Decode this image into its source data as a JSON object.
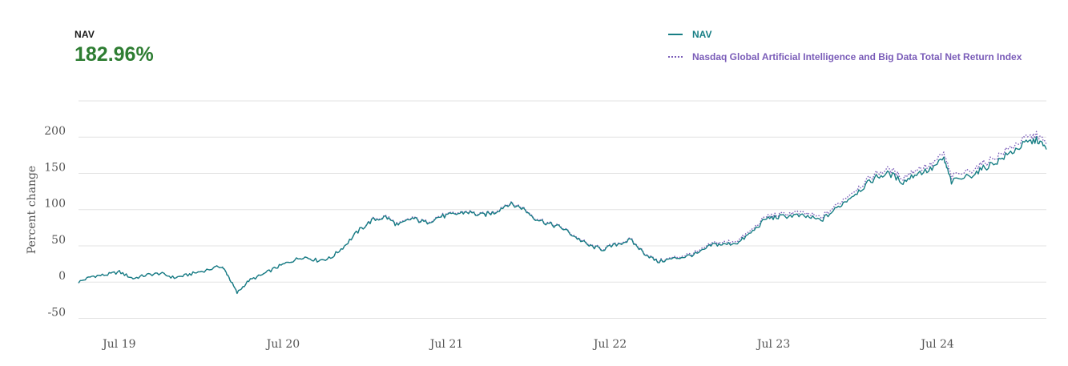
{
  "readout": {
    "label": "NAV",
    "value": "182.96%"
  },
  "colors": {
    "nav": "#177e84",
    "index": "#7a5cb8",
    "value_green": "#2e7d32",
    "grid": "#e3e3e3"
  },
  "chart_data": {
    "type": "line",
    "ylabel": "Percent change",
    "ylim": [
      -55,
      250
    ],
    "grid": true,
    "legend_position": "top-right",
    "y_ticks": [
      {
        "value": 200,
        "label": "200"
      },
      {
        "value": 150,
        "label": "150"
      },
      {
        "value": 100,
        "label": "100"
      },
      {
        "value": 50,
        "label": "50"
      },
      {
        "value": 0,
        "label": "0"
      },
      {
        "value": -50,
        "label": "-50"
      }
    ],
    "x_range": [
      "2019-04-01",
      "2025-03-01"
    ],
    "x_ticks": [
      {
        "date": "2019-07-01",
        "label": "Jul 19"
      },
      {
        "date": "2020-07-01",
        "label": "Jul 20"
      },
      {
        "date": "2021-07-01",
        "label": "Jul 21"
      },
      {
        "date": "2022-07-01",
        "label": "Jul 22"
      },
      {
        "date": "2023-07-01",
        "label": "Jul 23"
      },
      {
        "date": "2024-07-01",
        "label": "Jul 24"
      }
    ],
    "series": [
      {
        "name": "NAV",
        "style": "solid",
        "points": [
          [
            "2019-04-01",
            0
          ],
          [
            "2019-05-01",
            8
          ],
          [
            "2019-06-01",
            10
          ],
          [
            "2019-07-01",
            14
          ],
          [
            "2019-08-01",
            5
          ],
          [
            "2019-09-01",
            10
          ],
          [
            "2019-10-01",
            12
          ],
          [
            "2019-11-01",
            6
          ],
          [
            "2019-12-01",
            10
          ],
          [
            "2020-01-01",
            15
          ],
          [
            "2020-02-15",
            22
          ],
          [
            "2020-02-28",
            10
          ],
          [
            "2020-03-20",
            -15
          ],
          [
            "2020-04-15",
            2
          ],
          [
            "2020-05-15",
            10
          ],
          [
            "2020-06-15",
            20
          ],
          [
            "2020-07-15",
            28
          ],
          [
            "2020-08-15",
            35
          ],
          [
            "2020-09-15",
            30
          ],
          [
            "2020-10-15",
            33
          ],
          [
            "2020-11-15",
            50
          ],
          [
            "2020-12-15",
            70
          ],
          [
            "2021-01-15",
            85
          ],
          [
            "2021-02-15",
            90
          ],
          [
            "2021-03-15",
            78
          ],
          [
            "2021-04-15",
            88
          ],
          [
            "2021-05-15",
            82
          ],
          [
            "2021-06-15",
            90
          ],
          [
            "2021-07-15",
            93
          ],
          [
            "2021-08-15",
            97
          ],
          [
            "2021-09-15",
            92
          ],
          [
            "2021-10-15",
            96
          ],
          [
            "2021-11-15",
            108
          ],
          [
            "2021-12-15",
            103
          ],
          [
            "2022-01-15",
            88
          ],
          [
            "2022-02-15",
            80
          ],
          [
            "2022-03-15",
            75
          ],
          [
            "2022-04-15",
            62
          ],
          [
            "2022-05-15",
            50
          ],
          [
            "2022-06-15",
            45
          ],
          [
            "2022-07-15",
            52
          ],
          [
            "2022-08-15",
            58
          ],
          [
            "2022-09-15",
            40
          ],
          [
            "2022-10-15",
            28
          ],
          [
            "2022-11-15",
            32
          ],
          [
            "2022-12-15",
            35
          ],
          [
            "2023-01-15",
            40
          ],
          [
            "2023-02-15",
            52
          ],
          [
            "2023-03-15",
            52
          ],
          [
            "2023-04-15",
            55
          ],
          [
            "2023-05-15",
            70
          ],
          [
            "2023-06-15",
            88
          ],
          [
            "2023-07-15",
            90
          ],
          [
            "2023-08-15",
            92
          ],
          [
            "2023-09-15",
            90
          ],
          [
            "2023-10-15",
            85
          ],
          [
            "2023-11-15",
            100
          ],
          [
            "2023-12-15",
            115
          ],
          [
            "2024-01-15",
            130
          ],
          [
            "2024-02-15",
            145
          ],
          [
            "2024-03-15",
            150
          ],
          [
            "2024-04-15",
            138
          ],
          [
            "2024-05-15",
            150
          ],
          [
            "2024-06-15",
            155
          ],
          [
            "2024-07-15",
            170
          ],
          [
            "2024-08-01",
            138
          ],
          [
            "2024-09-15",
            148
          ],
          [
            "2024-10-15",
            158
          ],
          [
            "2024-11-15",
            168
          ],
          [
            "2024-12-15",
            180
          ],
          [
            "2025-01-15",
            192
          ],
          [
            "2025-02-10",
            196
          ],
          [
            "2025-03-01",
            183
          ]
        ]
      },
      {
        "name": "Nasdaq Global Artificial Intelligence and Big Data Total Net Return Index",
        "style": "dotted",
        "points": [
          [
            "2019-04-01",
            0
          ],
          [
            "2019-05-01",
            8
          ],
          [
            "2019-06-01",
            10
          ],
          [
            "2019-07-01",
            14
          ],
          [
            "2019-08-01",
            5
          ],
          [
            "2019-09-01",
            10
          ],
          [
            "2019-10-01",
            12
          ],
          [
            "2019-11-01",
            6
          ],
          [
            "2019-12-01",
            10
          ],
          [
            "2020-01-01",
            15
          ],
          [
            "2020-02-15",
            22
          ],
          [
            "2020-02-28",
            10
          ],
          [
            "2020-03-20",
            -15
          ],
          [
            "2020-04-15",
            2
          ],
          [
            "2020-05-15",
            10
          ],
          [
            "2020-06-15",
            20
          ],
          [
            "2020-07-15",
            28
          ],
          [
            "2020-08-15",
            35
          ],
          [
            "2020-09-15",
            30
          ],
          [
            "2020-10-15",
            33
          ],
          [
            "2020-11-15",
            50
          ],
          [
            "2020-12-15",
            70
          ],
          [
            "2021-01-15",
            86
          ],
          [
            "2021-02-15",
            91
          ],
          [
            "2021-03-15",
            79
          ],
          [
            "2021-04-15",
            89
          ],
          [
            "2021-05-15",
            83
          ],
          [
            "2021-06-15",
            91
          ],
          [
            "2021-07-15",
            94
          ],
          [
            "2021-08-15",
            98
          ],
          [
            "2021-09-15",
            93
          ],
          [
            "2021-10-15",
            97
          ],
          [
            "2021-11-15",
            109
          ],
          [
            "2021-12-15",
            104
          ],
          [
            "2022-01-15",
            89
          ],
          [
            "2022-02-15",
            81
          ],
          [
            "2022-03-15",
            76
          ],
          [
            "2022-04-15",
            63
          ],
          [
            "2022-05-15",
            51
          ],
          [
            "2022-06-15",
            46
          ],
          [
            "2022-07-15",
            53
          ],
          [
            "2022-08-15",
            59
          ],
          [
            "2022-09-15",
            41
          ],
          [
            "2022-10-15",
            29
          ],
          [
            "2022-11-15",
            33
          ],
          [
            "2022-12-15",
            37
          ],
          [
            "2023-01-15",
            42
          ],
          [
            "2023-02-15",
            54
          ],
          [
            "2023-03-15",
            55
          ],
          [
            "2023-04-15",
            58
          ],
          [
            "2023-05-15",
            73
          ],
          [
            "2023-06-15",
            91
          ],
          [
            "2023-07-15",
            93
          ],
          [
            "2023-08-15",
            96
          ],
          [
            "2023-09-15",
            94
          ],
          [
            "2023-10-15",
            89
          ],
          [
            "2023-11-15",
            104
          ],
          [
            "2023-12-15",
            120
          ],
          [
            "2024-01-15",
            135
          ],
          [
            "2024-02-15",
            150
          ],
          [
            "2024-03-15",
            156
          ],
          [
            "2024-04-15",
            144
          ],
          [
            "2024-05-15",
            156
          ],
          [
            "2024-06-15",
            161
          ],
          [
            "2024-07-15",
            177
          ],
          [
            "2024-08-01",
            145
          ],
          [
            "2024-09-15",
            155
          ],
          [
            "2024-10-15",
            165
          ],
          [
            "2024-11-15",
            175
          ],
          [
            "2024-12-15",
            187
          ],
          [
            "2025-01-15",
            199
          ],
          [
            "2025-02-10",
            203
          ],
          [
            "2025-03-01",
            190
          ]
        ]
      }
    ]
  }
}
